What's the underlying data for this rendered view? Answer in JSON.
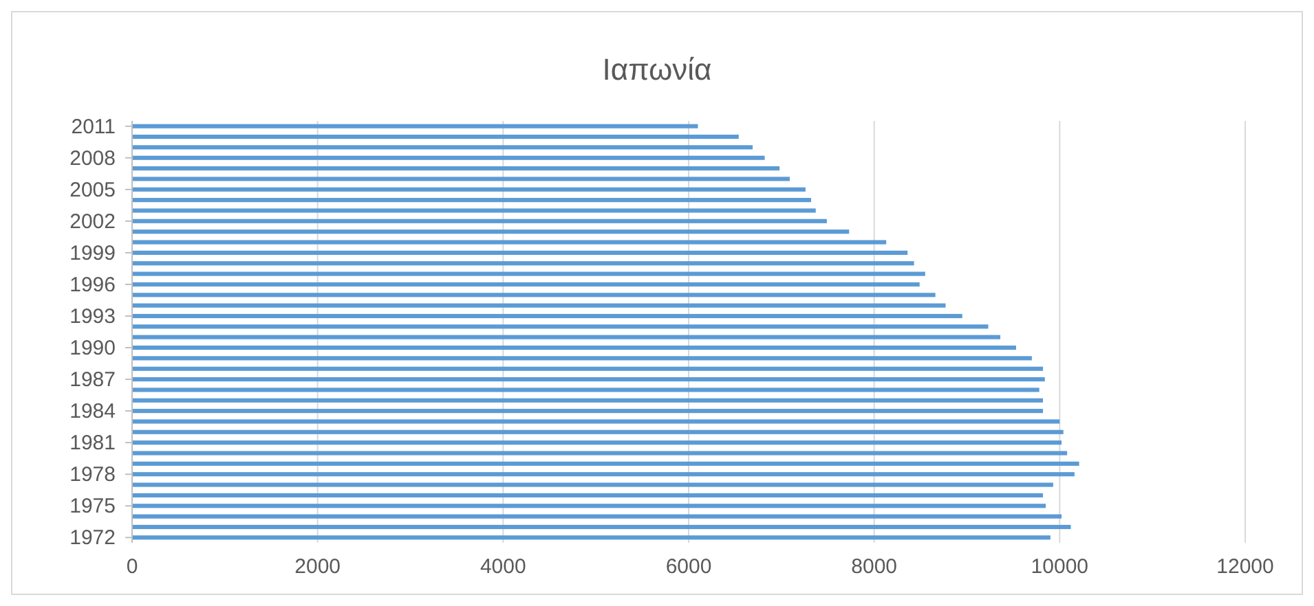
{
  "chart_data": {
    "type": "bar",
    "orientation": "horizontal",
    "title": "Ιαπωνία",
    "categories": [
      "2011",
      null,
      null,
      "2008",
      null,
      null,
      "2005",
      null,
      null,
      "2002",
      null,
      null,
      "1999",
      null,
      null,
      "1996",
      null,
      null,
      "1993",
      null,
      null,
      "1990",
      null,
      null,
      "1987",
      null,
      null,
      "1984",
      null,
      null,
      "1981",
      null,
      null,
      "1978",
      null,
      null,
      "1975",
      null,
      null,
      "1972"
    ],
    "values": [
      6100,
      6540,
      6690,
      6820,
      6980,
      7090,
      7260,
      7320,
      7370,
      7490,
      7730,
      8130,
      8360,
      8430,
      8550,
      8490,
      8660,
      8770,
      8950,
      9230,
      9360,
      9530,
      9700,
      9820,
      9840,
      9780,
      9820,
      9820,
      10000,
      10040,
      10020,
      10080,
      10210,
      10160,
      9930,
      9820,
      9850,
      10020,
      10120,
      9900
    ],
    "color": "#5b9bd5",
    "xlim": [
      0,
      12000
    ],
    "xticks": [
      0,
      2000,
      4000,
      6000,
      8000,
      10000,
      12000
    ],
    "grid": "x"
  }
}
